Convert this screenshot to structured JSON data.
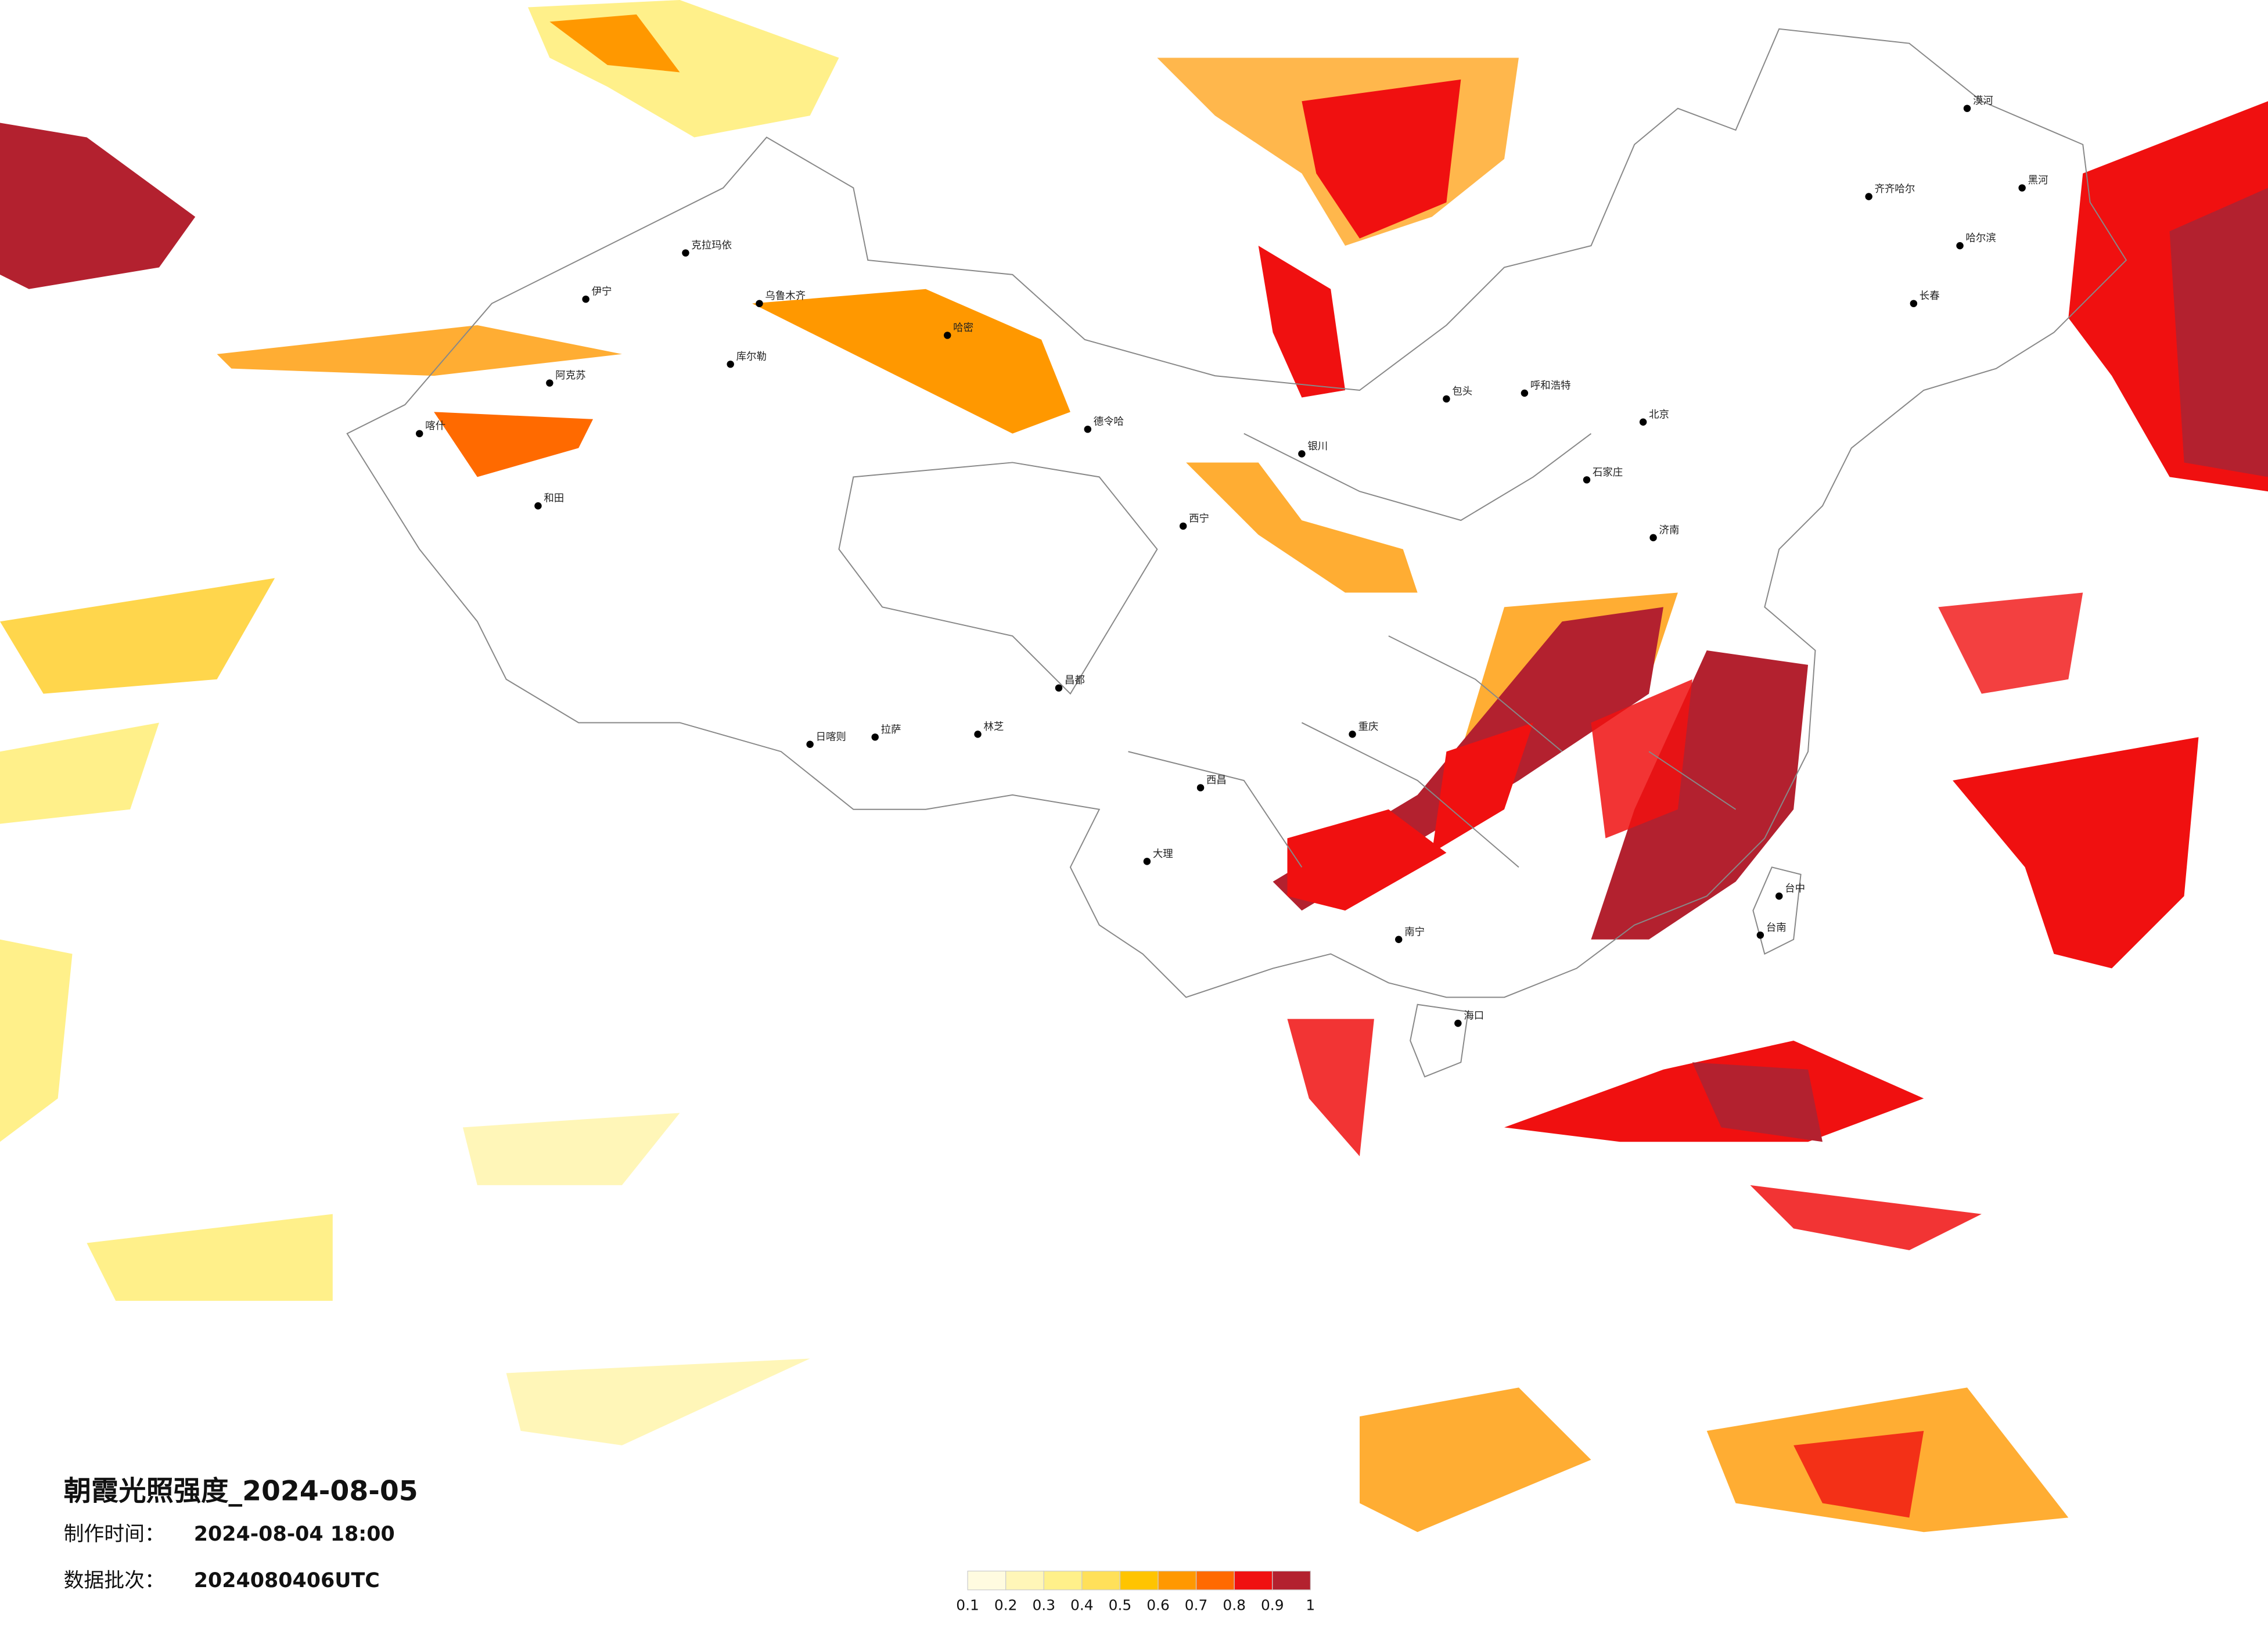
{
  "title": "朝霞光照强度_2024-08-05",
  "made_label": "制作时间：",
  "made_value": "2024-08-04 18:00",
  "batch_label": "数据批次：",
  "batch_value": "2024080406UTC",
  "legend": {
    "ticks": [
      0.1,
      0.2,
      0.3,
      0.4,
      0.5,
      0.6,
      0.7,
      0.8,
      0.9,
      1
    ],
    "colors": [
      "#fffbe0",
      "#fff6b8",
      "#fff08a",
      "#ffe05a",
      "#ffc400",
      "#ff9800",
      "#ff6a00",
      "#f01010",
      "#b3212f"
    ]
  },
  "cities": [
    {
      "name": "克拉玛依"
    },
    {
      "name": "伊宁"
    },
    {
      "name": "阿克苏"
    },
    {
      "name": "喀什"
    },
    {
      "name": "和田"
    },
    {
      "name": "乌鲁木齐"
    },
    {
      "name": "库尔勒"
    },
    {
      "name": "哈密"
    },
    {
      "name": "拉萨"
    },
    {
      "name": "日喀则"
    },
    {
      "name": "林芝"
    },
    {
      "name": "昌都"
    },
    {
      "name": "西宁"
    },
    {
      "name": "银川"
    },
    {
      "name": "德令哈"
    },
    {
      "name": "齐齐哈尔"
    },
    {
      "name": "哈尔滨"
    },
    {
      "name": "长春"
    },
    {
      "name": "呼和浩特"
    },
    {
      "name": "包头"
    },
    {
      "name": "北京"
    },
    {
      "name": "石家庄"
    },
    {
      "name": "济南"
    },
    {
      "name": "重庆"
    },
    {
      "name": "西昌"
    },
    {
      "name": "大理"
    },
    {
      "name": "南宁"
    },
    {
      "name": "海口"
    },
    {
      "name": "台中"
    },
    {
      "name": "台南"
    },
    {
      "name": "漠河"
    },
    {
      "name": "黑河"
    }
  ]
}
